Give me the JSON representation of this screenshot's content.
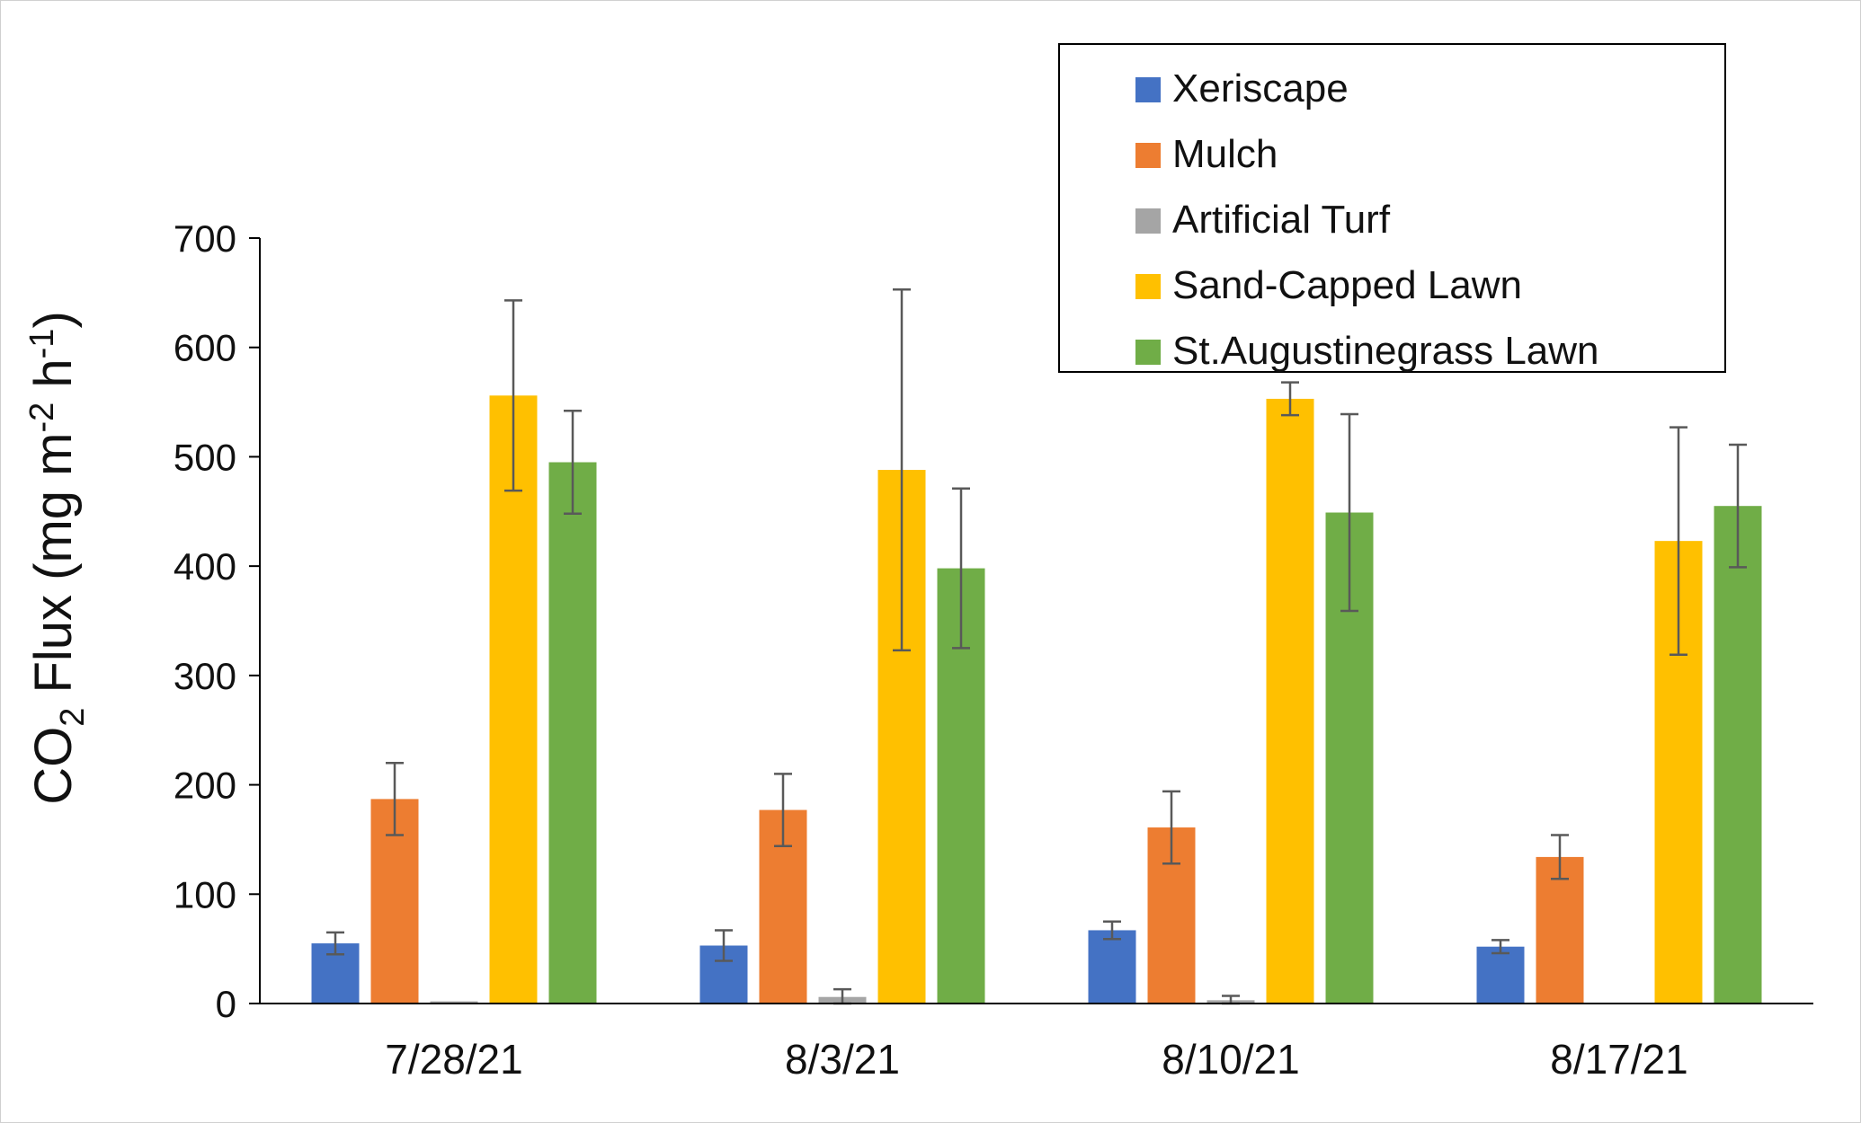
{
  "chart_data": {
    "type": "bar",
    "title": "",
    "xlabel": "",
    "ylabel": {
      "prefix": "CO",
      "sub": "2",
      "middle": " Flux (mg m",
      "sup1": "-2",
      "middle2": " h",
      "sup2": "-1",
      "suffix": ")"
    },
    "ylim": [
      0,
      700
    ],
    "yticks": [
      0,
      100,
      200,
      300,
      400,
      500,
      600,
      700
    ],
    "categories": [
      "7/28/21",
      "8/3/21",
      "8/10/21",
      "8/17/21"
    ],
    "legend_position": "top-right",
    "grid": false,
    "series": [
      {
        "name": "Xeriscape",
        "color": "#4472C4",
        "values": [
          55,
          53,
          67,
          52
        ],
        "errors": [
          10,
          14,
          8,
          6
        ]
      },
      {
        "name": "Mulch",
        "color": "#ED7D31",
        "values": [
          187,
          177,
          161,
          134
        ],
        "errors": [
          33,
          33,
          33,
          20
        ]
      },
      {
        "name": "Artificial Turf",
        "color": "#A5A5A5",
        "values": [
          2,
          6,
          3,
          0
        ],
        "errors": [
          0,
          7,
          4,
          0
        ]
      },
      {
        "name": "Sand-Capped Lawn",
        "color": "#FFC000",
        "values": [
          556,
          488,
          553,
          423
        ],
        "errors": [
          87,
          165,
          15,
          104
        ]
      },
      {
        "name": "St.Augustinegrass Lawn",
        "color": "#70AD47",
        "values": [
          495,
          398,
          449,
          455
        ],
        "errors": [
          47,
          73,
          90,
          56
        ]
      }
    ]
  }
}
